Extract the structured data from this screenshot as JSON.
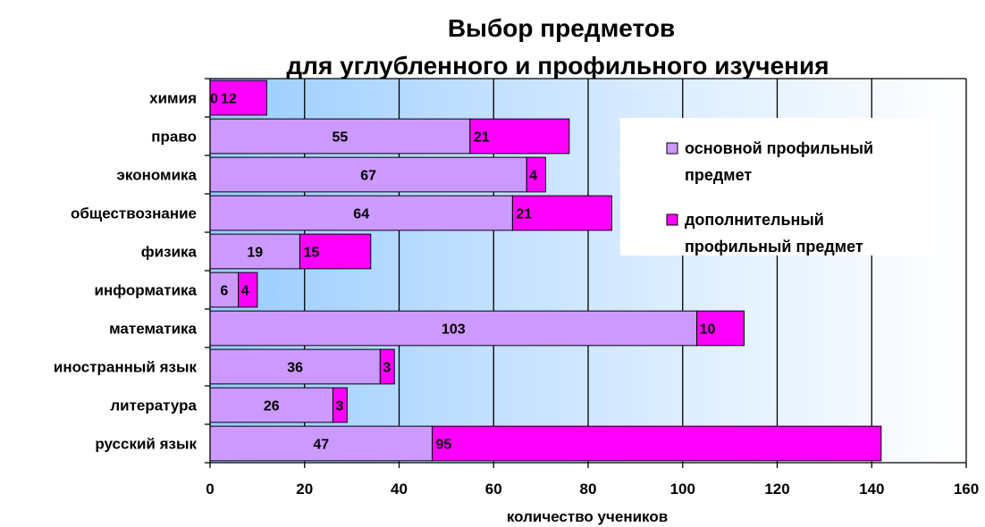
{
  "chart_data": {
    "type": "bar",
    "orientation": "horizontal",
    "stacked": true,
    "title": [
      "Выбор предметов",
      "для углубленного и профильного изучения"
    ],
    "xlabel": "количество учеников",
    "ylabel": "",
    "xlim": [
      0,
      160
    ],
    "xticks": [
      "0",
      "20",
      "40",
      "60",
      "80",
      "100",
      "120",
      "140",
      "160"
    ],
    "grid": true,
    "legend_position": "right",
    "categories": [
      "химия",
      "право",
      "экономика",
      "обществознание",
      "физика",
      "информатика",
      "математика",
      "иностранный язык",
      "литература",
      "русский язык"
    ],
    "series": [
      {
        "name": "основной профильный предмет",
        "values": [
          0,
          55,
          67,
          64,
          19,
          6,
          103,
          36,
          26,
          47
        ],
        "color": "#cc99ff"
      },
      {
        "name": "дополнительный профильный предмет",
        "values": [
          12,
          21,
          4,
          21,
          15,
          4,
          10,
          3,
          3,
          95
        ],
        "color": "#ff00ff"
      }
    ],
    "legend_lines": [
      [
        "основной профильный",
        "предмет"
      ],
      [
        "дополнительный",
        "профильный предмет"
      ]
    ]
  }
}
